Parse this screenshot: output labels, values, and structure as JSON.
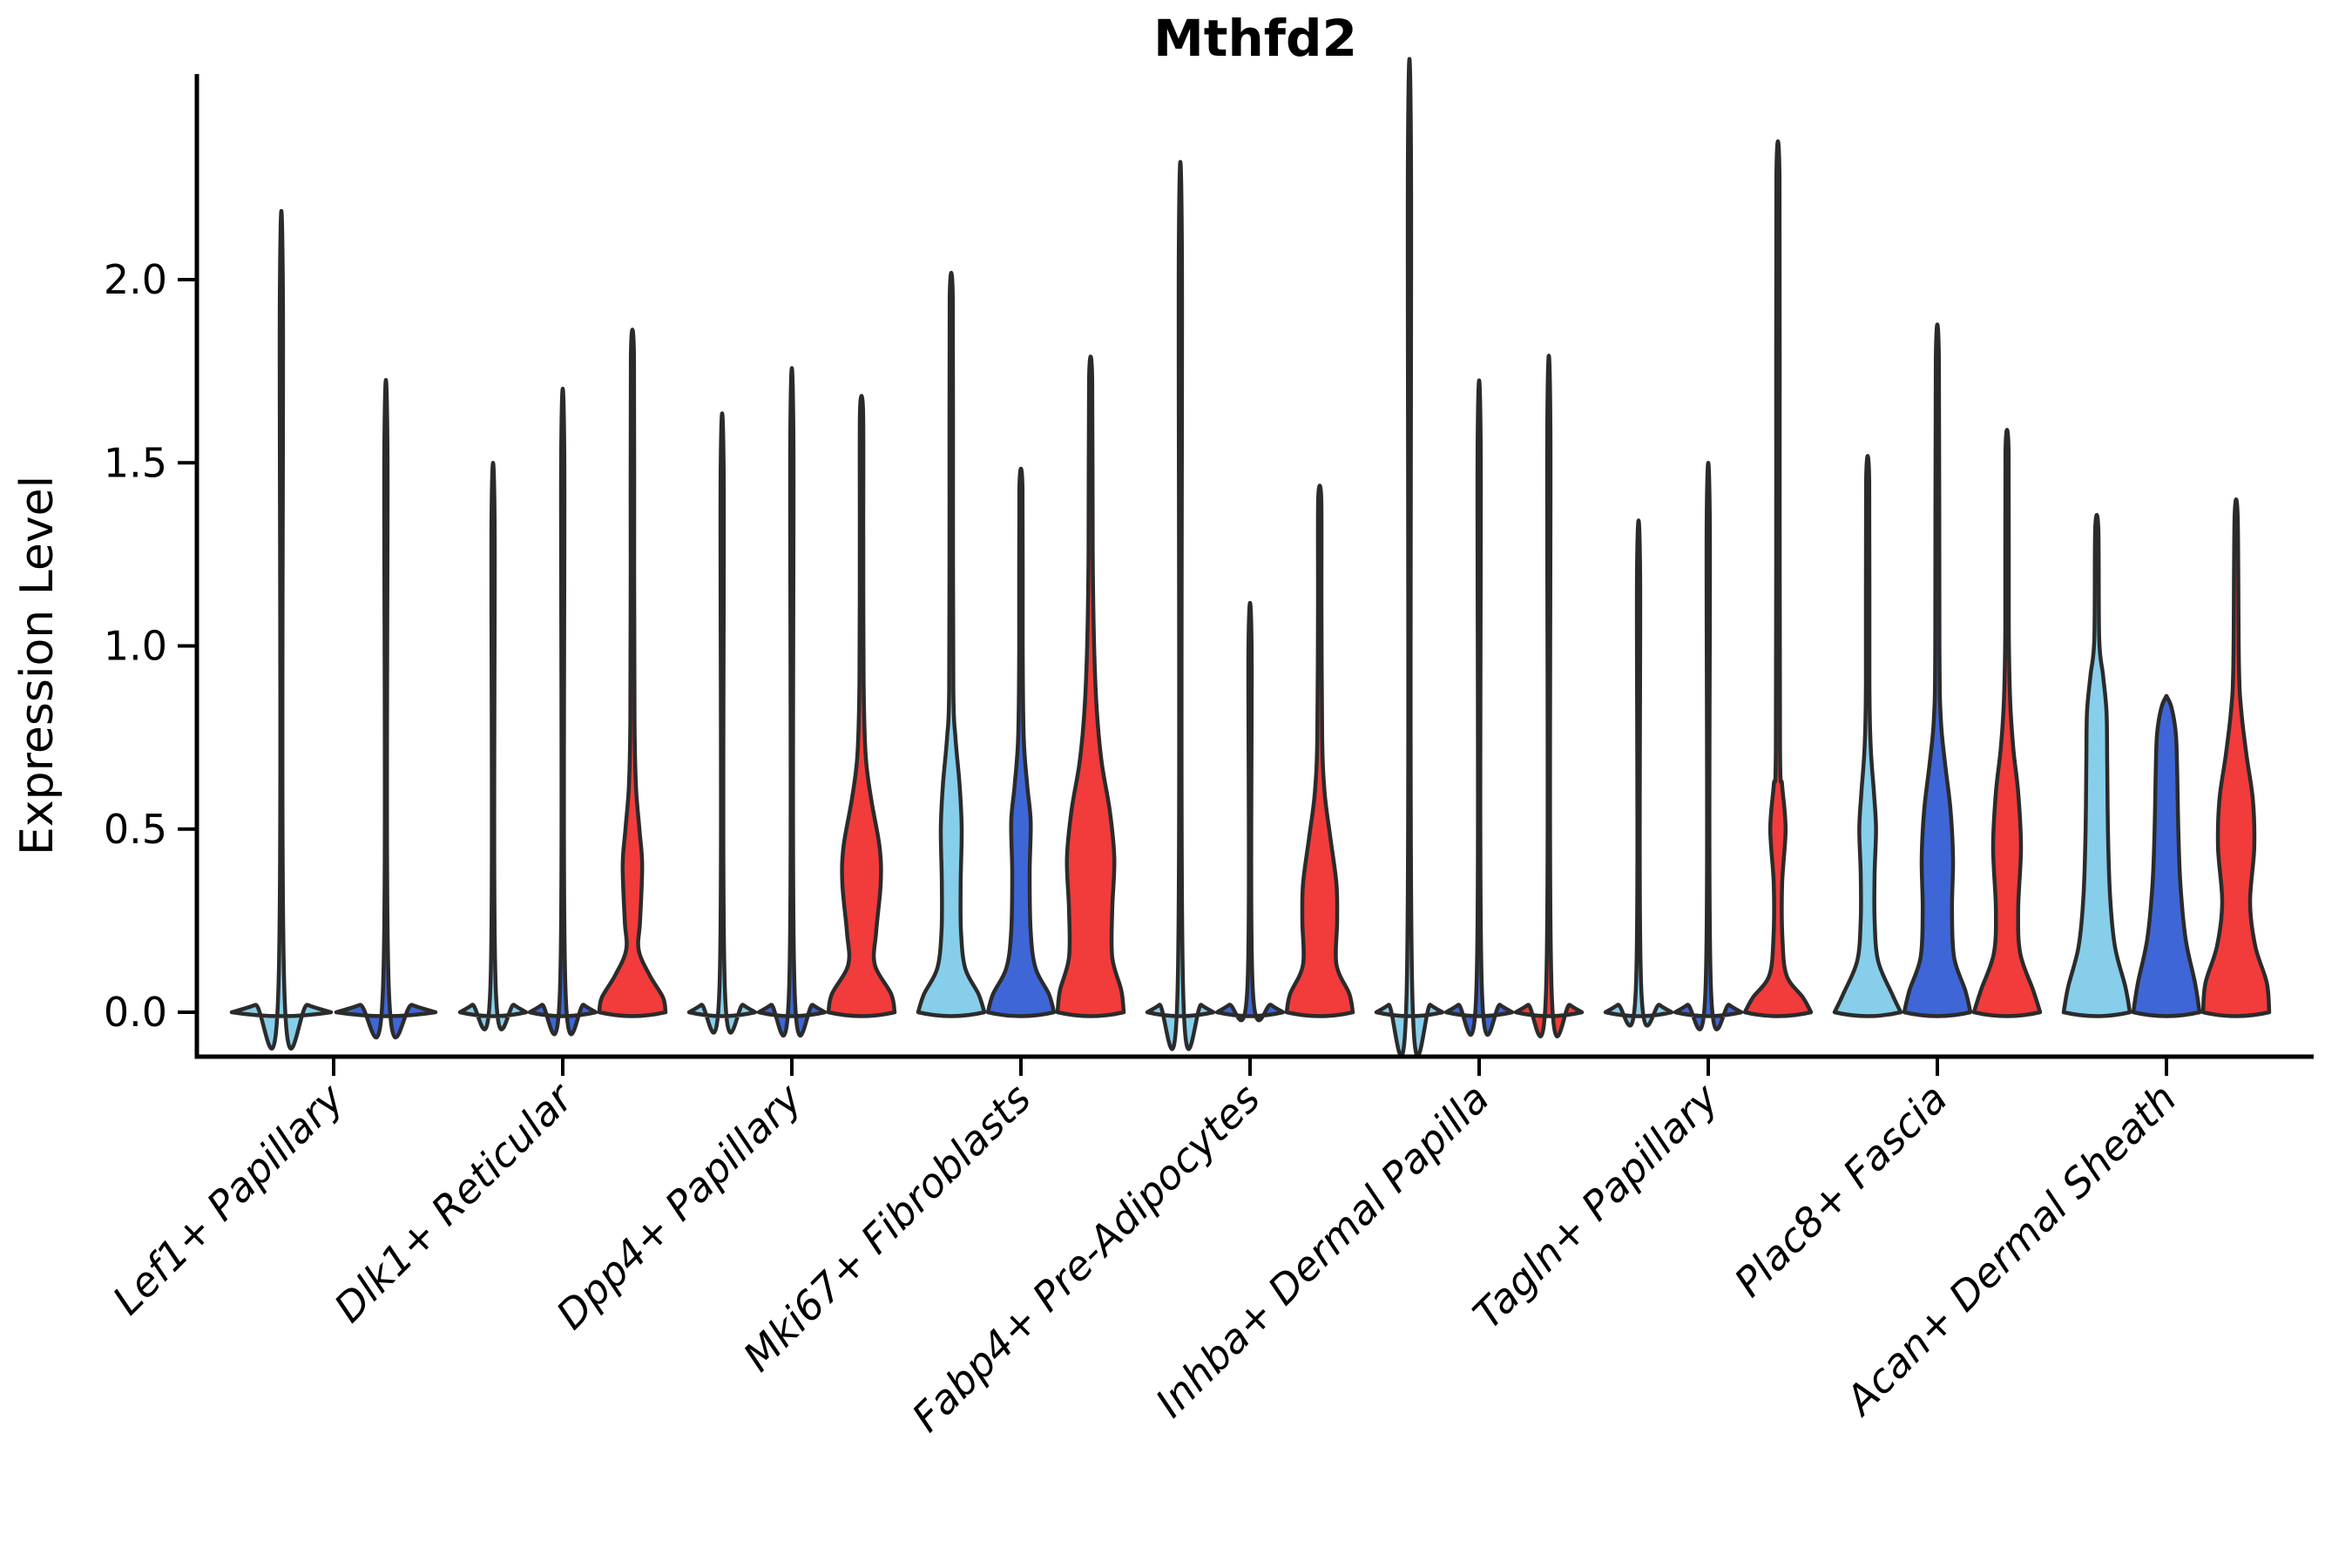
{
  "title": "Mthfd2",
  "y_axis": {
    "label": "Expression Level",
    "tick_labels": [
      "0.0",
      "0.5",
      "1.0",
      "1.5",
      "2.0"
    ],
    "tick_values": [
      0,
      0.5,
      1.0,
      1.5,
      2.0
    ]
  },
  "x_axis": {
    "categories": [
      "Lef1+ Papillary",
      "Dlk1+ Reticular",
      "Dpp4+ Papillary",
      "Mki67+ Fibroblasts",
      "Fabp4+ Pre-Adipocytes",
      "Inhba+ Dermal Papilla",
      "Tagln+ Papillary",
      "Plac8+ Fascia",
      "Acan+ Dermal Sheath"
    ]
  },
  "colors": {
    "skyblue": "#87CEEB",
    "blue": "#3E66D6",
    "red": "#F23B3B",
    "edge": "#2B2B2B",
    "axis": "#000000",
    "text": "#000000",
    "background": "#ffffff"
  },
  "chart_data": {
    "type": "violin",
    "title": "Mthfd2",
    "xlabel": "",
    "ylabel": "Expression Level",
    "ylim": [
      -0.12,
      2.56
    ],
    "yticks": [
      0,
      0.5,
      1.0,
      1.5,
      2.0
    ],
    "grid": false,
    "legend": "none",
    "categories": [
      "Lef1+ Papillary",
      "Dlk1+ Reticular",
      "Dpp4+ Papillary",
      "Mki67+ Fibroblasts",
      "Fabp4+ Pre-Adipocytes",
      "Inhba+ Dermal Papilla",
      "Tagln+ Papillary",
      "Plac8+ Fascia",
      "Acan+ Dermal Sheath"
    ],
    "groups": [
      {
        "label": "Lef1+ Papillary",
        "violins": [
          {
            "color": "skyblue",
            "max_expression": 1.95,
            "profile": [
              [
                0,
                0.95
              ],
              [
                0.02,
                0.5
              ],
              [
                0.05,
                0.06
              ],
              [
                1.95,
                0.03
              ]
            ]
          },
          {
            "color": "blue",
            "max_expression": 1.54,
            "profile": [
              [
                0,
                0.95
              ],
              [
                0.02,
                0.5
              ],
              [
                0.05,
                0.06
              ],
              [
                1.54,
                0.03
              ]
            ]
          }
        ]
      },
      {
        "label": "Dlk1+ Reticular",
        "violins": [
          {
            "color": "skyblue",
            "max_expression": 1.34,
            "profile": [
              [
                0,
                0.95
              ],
              [
                0.02,
                0.6
              ],
              [
                0.06,
                0.08
              ],
              [
                1.34,
                0.045
              ]
            ]
          },
          {
            "color": "blue",
            "max_expression": 1.52,
            "profile": [
              [
                0,
                0.95
              ],
              [
                0.02,
                0.6
              ],
              [
                0.06,
                0.08
              ],
              [
                1.52,
                0.045
              ]
            ]
          },
          {
            "color": "red",
            "max_expression": 1.79,
            "profile": [
              [
                0,
                0.95
              ],
              [
                0.04,
                0.88
              ],
              [
                0.1,
                0.5
              ],
              [
                0.17,
                0.18
              ],
              [
                0.25,
                0.22
              ],
              [
                0.4,
                0.28
              ],
              [
                0.5,
                0.2
              ],
              [
                0.62,
                0.1
              ],
              [
                0.8,
                0.06
              ],
              [
                1.2,
                0.05
              ],
              [
                1.79,
                0.045
              ]
            ]
          }
        ]
      },
      {
        "label": "Dpp4+ Papillary",
        "violins": [
          {
            "color": "skyblue",
            "max_expression": 1.46,
            "profile": [
              [
                0,
                0.95
              ],
              [
                0.02,
                0.6
              ],
              [
                0.06,
                0.08
              ],
              [
                1.46,
                0.045
              ]
            ]
          },
          {
            "color": "blue",
            "max_expression": 1.57,
            "profile": [
              [
                0,
                0.95
              ],
              [
                0.02,
                0.6
              ],
              [
                0.06,
                0.08
              ],
              [
                1.57,
                0.045
              ]
            ]
          },
          {
            "color": "red",
            "max_expression": 1.64,
            "profile": [
              [
                0,
                0.95
              ],
              [
                0.05,
                0.85
              ],
              [
                0.13,
                0.38
              ],
              [
                0.22,
                0.42
              ],
              [
                0.35,
                0.55
              ],
              [
                0.45,
                0.52
              ],
              [
                0.58,
                0.28
              ],
              [
                0.7,
                0.12
              ],
              [
                0.9,
                0.06
              ],
              [
                1.3,
                0.05
              ],
              [
                1.64,
                0.045
              ]
            ]
          }
        ]
      },
      {
        "label": "Mki67+ Fibroblasts",
        "violins": [
          {
            "color": "skyblue",
            "max_expression": 1.95,
            "profile": [
              [
                0,
                0.95
              ],
              [
                0.05,
                0.78
              ],
              [
                0.12,
                0.4
              ],
              [
                0.22,
                0.28
              ],
              [
                0.35,
                0.27
              ],
              [
                0.5,
                0.3
              ],
              [
                0.62,
                0.24
              ],
              [
                0.75,
                0.12
              ],
              [
                0.88,
                0.06
              ],
              [
                1.4,
                0.05
              ],
              [
                1.95,
                0.045
              ]
            ]
          },
          {
            "color": "blue",
            "max_expression": 1.43,
            "profile": [
              [
                0,
                0.95
              ],
              [
                0.05,
                0.8
              ],
              [
                0.12,
                0.42
              ],
              [
                0.22,
                0.28
              ],
              [
                0.38,
                0.25
              ],
              [
                0.52,
                0.28
              ],
              [
                0.62,
                0.18
              ],
              [
                0.75,
                0.08
              ],
              [
                1.0,
                0.05
              ],
              [
                1.43,
                0.045
              ]
            ]
          },
          {
            "color": "red",
            "max_expression": 1.73,
            "profile": [
              [
                0,
                0.95
              ],
              [
                0.06,
                0.88
              ],
              [
                0.15,
                0.62
              ],
              [
                0.28,
                0.62
              ],
              [
                0.42,
                0.68
              ],
              [
                0.55,
                0.55
              ],
              [
                0.68,
                0.32
              ],
              [
                0.82,
                0.18
              ],
              [
                1.0,
                0.1
              ],
              [
                1.25,
                0.06
              ],
              [
                1.73,
                0.045
              ]
            ]
          }
        ]
      },
      {
        "label": "Fabp4+ Pre-Adipocytes",
        "violins": [
          {
            "color": "skyblue",
            "max_expression": 2.07,
            "profile": [
              [
                0,
                0.95
              ],
              [
                0.02,
                0.6
              ],
              [
                0.06,
                0.08
              ],
              [
                2.07,
                0.045
              ]
            ]
          },
          {
            "color": "blue",
            "max_expression": 1.0,
            "profile": [
              [
                0,
                0.95
              ],
              [
                0.02,
                0.6
              ],
              [
                0.06,
                0.08
              ],
              [
                1.0,
                0.045
              ]
            ]
          },
          {
            "color": "red",
            "max_expression": 1.4,
            "profile": [
              [
                0,
                0.95
              ],
              [
                0.05,
                0.85
              ],
              [
                0.13,
                0.48
              ],
              [
                0.25,
                0.5
              ],
              [
                0.35,
                0.48
              ],
              [
                0.48,
                0.3
              ],
              [
                0.6,
                0.14
              ],
              [
                0.75,
                0.07
              ],
              [
                1.1,
                0.05
              ],
              [
                1.4,
                0.045
              ]
            ]
          }
        ]
      },
      {
        "label": "Inhba+ Dermal Papilla",
        "violins": [
          {
            "color": "skyblue",
            "max_expression": 2.32,
            "profile": [
              [
                0,
                0.95
              ],
              [
                0.02,
                0.6
              ],
              [
                0.06,
                0.08
              ],
              [
                2.32,
                0.045
              ]
            ]
          },
          {
            "color": "blue",
            "max_expression": 1.54,
            "profile": [
              [
                0,
                0.95
              ],
              [
                0.02,
                0.6
              ],
              [
                0.06,
                0.08
              ],
              [
                1.54,
                0.045
              ]
            ]
          },
          {
            "color": "red",
            "max_expression": 1.6,
            "profile": [
              [
                0,
                0.95
              ],
              [
                0.02,
                0.6
              ],
              [
                0.06,
                0.08
              ],
              [
                1.6,
                0.045
              ]
            ]
          }
        ]
      },
      {
        "label": "Tagln+ Papillary",
        "violins": [
          {
            "color": "skyblue",
            "max_expression": 1.2,
            "profile": [
              [
                0,
                0.95
              ],
              [
                0.02,
                0.6
              ],
              [
                0.06,
                0.08
              ],
              [
                1.2,
                0.045
              ]
            ]
          },
          {
            "color": "blue",
            "max_expression": 1.34,
            "profile": [
              [
                0,
                0.95
              ],
              [
                0.02,
                0.6
              ],
              [
                0.06,
                0.08
              ],
              [
                1.34,
                0.045
              ]
            ]
          },
          {
            "color": "red",
            "max_expression": 2.28,
            "profile": [
              [
                0,
                0.95
              ],
              [
                0.04,
                0.72
              ],
              [
                0.1,
                0.25
              ],
              [
                0.2,
                0.13
              ],
              [
                0.35,
                0.12
              ],
              [
                0.5,
                0.22
              ],
              [
                0.62,
                0.12
              ],
              [
                0.72,
                0.06
              ],
              [
                1.5,
                0.05
              ],
              [
                2.28,
                0.045
              ]
            ]
          }
        ]
      },
      {
        "label": "Plac8+ Fascia",
        "violins": [
          {
            "color": "skyblue",
            "max_expression": 1.45,
            "profile": [
              [
                0,
                0.95
              ],
              [
                0.05,
                0.7
              ],
              [
                0.14,
                0.3
              ],
              [
                0.25,
                0.2
              ],
              [
                0.38,
                0.2
              ],
              [
                0.5,
                0.24
              ],
              [
                0.6,
                0.18
              ],
              [
                0.72,
                0.09
              ],
              [
                0.9,
                0.05
              ],
              [
                1.45,
                0.045
              ]
            ]
          },
          {
            "color": "blue",
            "max_expression": 1.78,
            "profile": [
              [
                0,
                0.95
              ],
              [
                0.06,
                0.8
              ],
              [
                0.15,
                0.48
              ],
              [
                0.28,
                0.42
              ],
              [
                0.42,
                0.45
              ],
              [
                0.55,
                0.38
              ],
              [
                0.68,
                0.22
              ],
              [
                0.8,
                0.1
              ],
              [
                1.0,
                0.06
              ],
              [
                1.78,
                0.045
              ]
            ]
          },
          {
            "color": "red",
            "max_expression": 1.53,
            "profile": [
              [
                0,
                0.95
              ],
              [
                0.06,
                0.75
              ],
              [
                0.16,
                0.38
              ],
              [
                0.28,
                0.32
              ],
              [
                0.45,
                0.4
              ],
              [
                0.6,
                0.32
              ],
              [
                0.72,
                0.18
              ],
              [
                0.85,
                0.09
              ],
              [
                1.05,
                0.05
              ],
              [
                1.53,
                0.045
              ]
            ]
          }
        ]
      },
      {
        "label": "Acan+ Dermal Sheath",
        "violins": [
          {
            "color": "skyblue",
            "max_expression": 1.32,
            "profile": [
              [
                0,
                0.95
              ],
              [
                0.07,
                0.82
              ],
              [
                0.18,
                0.52
              ],
              [
                0.32,
                0.38
              ],
              [
                0.5,
                0.32
              ],
              [
                0.68,
                0.3
              ],
              [
                0.82,
                0.28
              ],
              [
                0.92,
                0.18
              ],
              [
                1.02,
                0.07
              ],
              [
                1.32,
                0.045
              ]
            ]
          },
          {
            "color": "blue",
            "max_expression": 0.86,
            "profile": [
              [
                0,
                0.95
              ],
              [
                0.08,
                0.82
              ],
              [
                0.2,
                0.55
              ],
              [
                0.35,
                0.4
              ],
              [
                0.5,
                0.34
              ],
              [
                0.65,
                0.31
              ],
              [
                0.76,
                0.27
              ],
              [
                0.83,
                0.15
              ],
              [
                0.86,
                0.02
              ]
            ]
          },
          {
            "color": "red",
            "max_expression": 1.35,
            "profile": [
              [
                0,
                0.95
              ],
              [
                0.08,
                0.88
              ],
              [
                0.18,
                0.55
              ],
              [
                0.3,
                0.4
              ],
              [
                0.45,
                0.52
              ],
              [
                0.58,
                0.48
              ],
              [
                0.7,
                0.3
              ],
              [
                0.82,
                0.15
              ],
              [
                0.95,
                0.08
              ],
              [
                1.35,
                0.045
              ]
            ]
          }
        ]
      }
    ]
  }
}
